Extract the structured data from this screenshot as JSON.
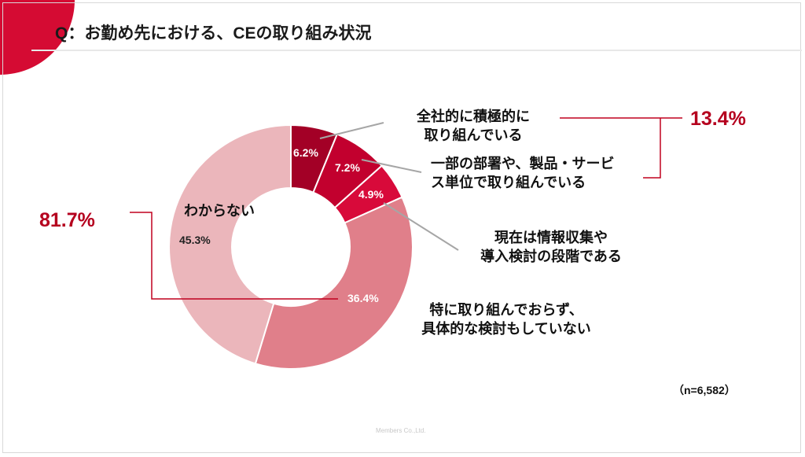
{
  "title": "Q：お勤め先における、CEの取り組み状況",
  "footer": "Members Co.,Ltd.",
  "chart_data": {
    "type": "pie",
    "subtype": "donut",
    "title": "Q：お勤め先における、CEの取り組み状況",
    "sample": "（n=6,582）",
    "slices": [
      {
        "label_lines": [
          "全社的に積極的に",
          "取り組んでいる"
        ],
        "value": 6.2,
        "value_label": "6.2%",
        "color": "#a30026"
      },
      {
        "label_lines": [
          "一部の部署や、製品・サービ",
          "ス単位で取り組んでいる"
        ],
        "value": 7.2,
        "value_label": "7.2%",
        "color": "#c2002e"
      },
      {
        "label_lines": [
          "現在は情報収集や",
          "導入検討の段階である"
        ],
        "value": 4.9,
        "value_label": "4.9%",
        "color": "#d80a3a"
      },
      {
        "label_lines": [
          "特に取り組んでおらず、",
          "具体的な検討もしていない"
        ],
        "value": 36.4,
        "value_label": "36.4%",
        "color": "#e07f8a"
      },
      {
        "label_lines": [
          "わからない"
        ],
        "value": 45.3,
        "value_label": "45.3%",
        "color": "#ebb6bb"
      }
    ],
    "groups": [
      {
        "label": "13.4%",
        "value": 13.4
      },
      {
        "label": "81.7%",
        "value": 81.7
      }
    ]
  }
}
